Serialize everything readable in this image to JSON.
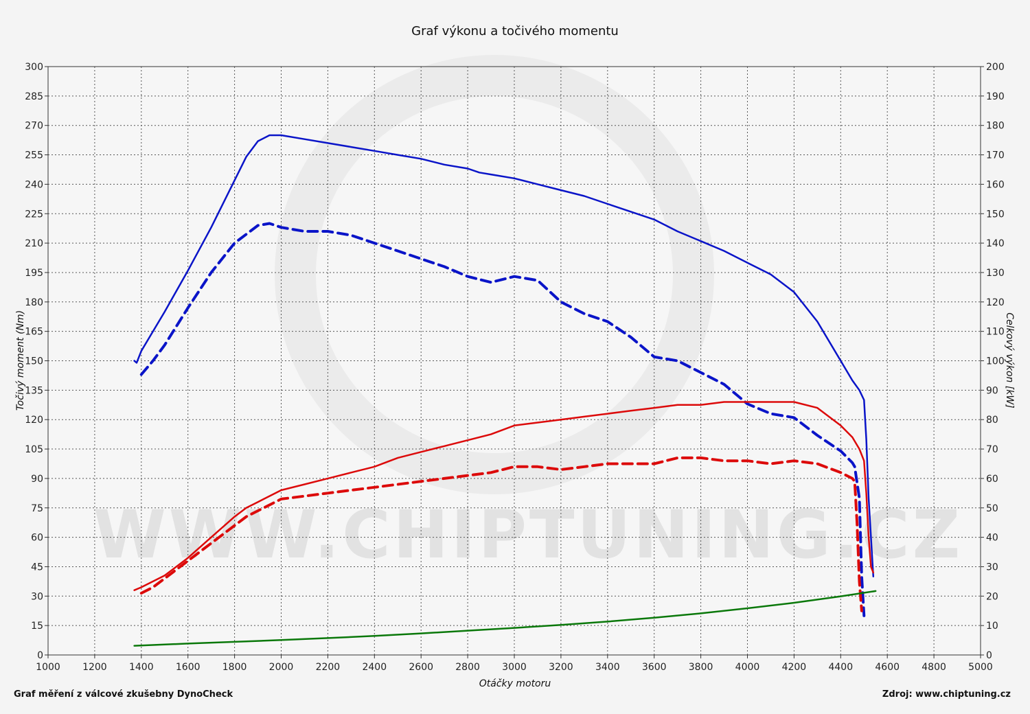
{
  "chart_data": {
    "type": "line",
    "title": "Graf výkonu a točivého momentu",
    "xlabel": "Otáčky motoru",
    "ylabel_left": "Točivý moment (Nm)",
    "ylabel_right": "Celkový výkon [kW]",
    "xlim": [
      1000,
      5000
    ],
    "ylim_left": [
      0,
      300
    ],
    "ylim_right": [
      0,
      200
    ],
    "x_ticks": [
      "1000",
      "1200",
      "1400",
      "1600",
      "1800",
      "2000",
      "2200",
      "2400",
      "2600",
      "2800",
      "3000",
      "3200",
      "3400",
      "3600",
      "3800",
      "4000",
      "4200",
      "4400",
      "4600",
      "4800",
      "5000"
    ],
    "y_left_ticks": [
      "0",
      "15",
      "30",
      "45",
      "60",
      "75",
      "90",
      "105",
      "120",
      "135",
      "150",
      "165",
      "180",
      "195",
      "210",
      "225",
      "240",
      "255",
      "270",
      "285",
      "300"
    ],
    "y_right_ticks": [
      "0",
      "10",
      "20",
      "30",
      "40",
      "50",
      "60",
      "70",
      "80",
      "90",
      "100",
      "110",
      "120",
      "130",
      "140",
      "150",
      "160",
      "170",
      "180",
      "190",
      "200"
    ],
    "grid": true,
    "watermark": "WWW.CHIPTUNING.CZ",
    "series": [
      {
        "color": "#0a14c8",
        "dash": false,
        "axis": "left",
        "x": [
          1370,
          1380,
          1400,
          1450,
          1500,
          1600,
          1700,
          1800,
          1850,
          1900,
          1950,
          2000,
          2100,
          2200,
          2300,
          2400,
          2500,
          2600,
          2700,
          2800,
          2850,
          2900,
          3000,
          3100,
          3200,
          3300,
          3400,
          3500,
          3600,
          3700,
          3800,
          3900,
          4000,
          4100,
          4200,
          4300,
          4400,
          4450,
          4480,
          4500,
          4510,
          4520,
          4530,
          4540
        ],
        "y": [
          150,
          149,
          155,
          165,
          175,
          196,
          218,
          242,
          254,
          262,
          265,
          265,
          263,
          261,
          259,
          257,
          255,
          253,
          250,
          248,
          246,
          245,
          243,
          240,
          237,
          234,
          230,
          226,
          222,
          216,
          211,
          206,
          200,
          194,
          185,
          170,
          150,
          140,
          135,
          130,
          110,
          80,
          60,
          40
        ]
      },
      {
        "color": "#0a14c8",
        "dash": true,
        "axis": "left",
        "x": [
          1400,
          1450,
          1500,
          1600,
          1700,
          1800,
          1900,
          1950,
          2000,
          2100,
          2200,
          2300,
          2400,
          2500,
          2600,
          2700,
          2800,
          2900,
          3000,
          3100,
          3200,
          3300,
          3400,
          3500,
          3600,
          3700,
          3800,
          3900,
          4000,
          4100,
          4200,
          4300,
          4400,
          4450,
          4460,
          4480,
          4490,
          4500
        ],
        "y": [
          143,
          150,
          158,
          177,
          195,
          210,
          219,
          220,
          218,
          216,
          216,
          214,
          210,
          206,
          202,
          198,
          193,
          190,
          193,
          191,
          180,
          174,
          170,
          162,
          152,
          150,
          144,
          138,
          128,
          123,
          121,
          112,
          104,
          98,
          96,
          80,
          40,
          20
        ]
      },
      {
        "color": "#dc0a0a",
        "dash": false,
        "axis": "right",
        "x": [
          1370,
          1400,
          1500,
          1600,
          1700,
          1800,
          1850,
          1900,
          2000,
          2100,
          2200,
          2300,
          2400,
          2500,
          2600,
          2700,
          2800,
          2900,
          3000,
          3100,
          3200,
          3300,
          3400,
          3500,
          3600,
          3700,
          3800,
          3900,
          4000,
          4100,
          4200,
          4300,
          4400,
          4450,
          4480,
          4500,
          4510,
          4520,
          4530,
          4540
        ],
        "y": [
          22,
          23,
          27,
          33,
          40,
          47,
          50,
          52,
          56,
          58,
          60,
          62,
          64,
          67,
          69,
          71,
          73,
          75,
          78,
          79,
          80,
          81,
          82,
          83,
          84,
          85,
          85,
          86,
          86,
          86,
          86,
          84,
          78,
          74,
          70,
          66,
          55,
          40,
          30,
          28
        ]
      },
      {
        "color": "#dc0a0a",
        "dash": true,
        "axis": "right",
        "x": [
          1400,
          1450,
          1500,
          1600,
          1700,
          1800,
          1850,
          1900,
          2000,
          2100,
          2200,
          2300,
          2400,
          2500,
          2600,
          2700,
          2800,
          2900,
          3000,
          3100,
          3200,
          3300,
          3400,
          3500,
          3600,
          3700,
          3800,
          3900,
          4000,
          4100,
          4200,
          4300,
          4400,
          4450,
          4460,
          4470,
          4480,
          4490
        ],
        "y": [
          21,
          23,
          26,
          32,
          38,
          44,
          47,
          49,
          53,
          54,
          55,
          56,
          57,
          58,
          59,
          60,
          61,
          62,
          64,
          64,
          63,
          64,
          65,
          65,
          65,
          67,
          67,
          66,
          66,
          65,
          66,
          65,
          62,
          60,
          59,
          45,
          25,
          15
        ]
      },
      {
        "color": "#0a780a",
        "dash": false,
        "axis": "left",
        "x": [
          1370,
          1600,
          1800,
          2000,
          2200,
          2400,
          2600,
          2800,
          3000,
          3200,
          3400,
          3600,
          3800,
          4000,
          4200,
          4400,
          4550
        ],
        "y": [
          4.7,
          5.8,
          6.7,
          7.6,
          8.6,
          9.7,
          11.0,
          12.4,
          13.8,
          15.3,
          17.0,
          19.0,
          21.2,
          23.8,
          26.6,
          29.9,
          32.6
        ]
      }
    ]
  },
  "footer": {
    "left_text": "Graf měření z válcové zkušebny DynoCheck",
    "right_text": "Zdroj: www.chiptuning.cz"
  }
}
